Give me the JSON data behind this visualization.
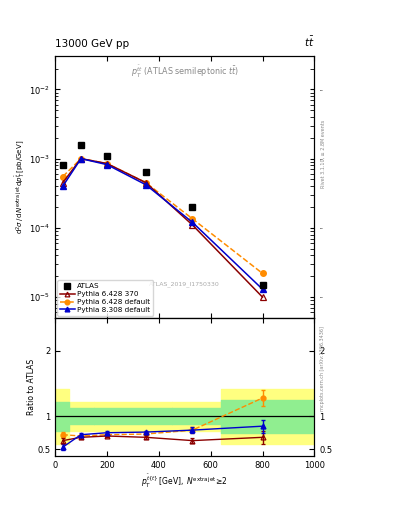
{
  "atlas_x": [
    30,
    100,
    200,
    350,
    530,
    800
  ],
  "atlas_y": [
    0.0008,
    0.00155,
    0.0011,
    0.00065,
    0.0002,
    1.5e-05
  ],
  "py6_370_x": [
    30,
    100,
    200,
    350,
    530,
    800
  ],
  "py6_370_y": [
    0.00045,
    0.001,
    0.00085,
    0.00045,
    0.00011,
    1e-05
  ],
  "py6_def_x": [
    30,
    100,
    200,
    350,
    530,
    800
  ],
  "py6_def_y": [
    0.00055,
    0.001,
    0.00085,
    0.00045,
    0.000135,
    2.2e-05
  ],
  "py8_def_x": [
    30,
    100,
    200,
    350,
    530,
    800
  ],
  "py8_def_y": [
    0.0004,
    0.001,
    0.00082,
    0.00042,
    0.00012,
    1.3e-05
  ],
  "ratio_py6_370_y": [
    0.63,
    0.68,
    0.7,
    0.68,
    0.63,
    0.68
  ],
  "ratio_py6_def_y": [
    0.72,
    0.7,
    0.72,
    0.73,
    0.79,
    1.28
  ],
  "ratio_py8_def_y": [
    0.53,
    0.72,
    0.75,
    0.76,
    0.79,
    0.85
  ],
  "ratio_py6_370_yerr": [
    0.04,
    0.02,
    0.02,
    0.03,
    0.04,
    0.1
  ],
  "ratio_py6_def_yerr": [
    0.04,
    0.02,
    0.02,
    0.03,
    0.04,
    0.12
  ],
  "ratio_py8_def_yerr": [
    0.05,
    0.02,
    0.02,
    0.02,
    0.04,
    0.1
  ],
  "band_x_edges": [
    0,
    55,
    150,
    450,
    640,
    1000
  ],
  "band_green_lo": [
    0.78,
    0.88,
    0.88,
    0.88,
    0.75,
    0.75
  ],
  "band_green_hi": [
    1.22,
    1.12,
    1.12,
    1.12,
    1.25,
    1.25
  ],
  "band_yellow_lo": [
    0.58,
    0.78,
    0.78,
    0.78,
    0.58,
    0.58
  ],
  "band_yellow_hi": [
    1.42,
    1.22,
    1.22,
    1.22,
    1.42,
    1.42
  ],
  "color_atlas": "#000000",
  "color_py6_370": "#8b0000",
  "color_py6_def": "#ff8c00",
  "color_py8_def": "#0000cc",
  "color_green": "#90ee90",
  "color_yellow": "#ffff80",
  "xlim": [
    0,
    1000
  ],
  "ylim_main": [
    5e-06,
    0.03
  ],
  "ylim_ratio": [
    0.4,
    2.5
  ],
  "title_left": "13000 GeV pp",
  "title_right": "tt̅",
  "inner_label": "p_{T}^{#bar{t}t} (ATLAS semileptonic t#bar{t})",
  "watermark": "ATLAS_2019_I1750330",
  "right_label1": "Rivet 3.1.10, ≥ 2.8M events",
  "right_label2": "mcplots.cern.ch [arXiv:1306.3436]"
}
